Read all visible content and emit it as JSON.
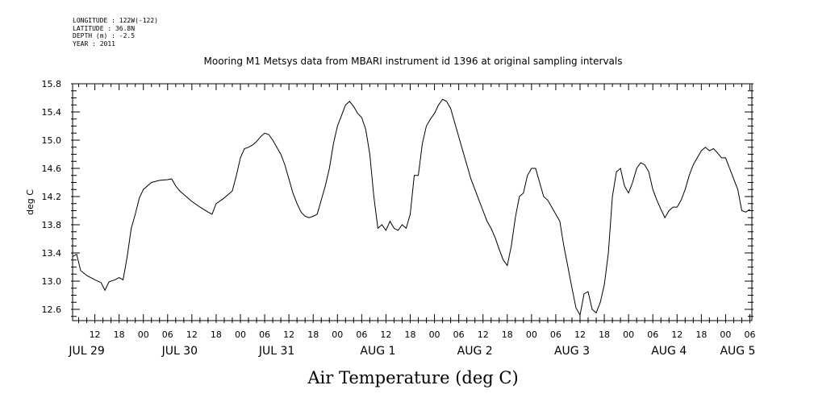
{
  "meta": {
    "longitude": "LONGITUDE : 122W(-122)",
    "latitude": "LATITUDE : 36.8N",
    "depth": "DEPTH (m) : -2.5",
    "year": "YEAR : 2011"
  },
  "chart_data": {
    "type": "line",
    "title": "Mooring M1 Metsys data from MBARI instrument id 1396 at original sampling intervals",
    "xlabel": "Air Temperature (deg C)",
    "ylabel": "deg C",
    "ylim": [
      12.44,
      15.8
    ],
    "xlim_hours": [
      6.5,
      174.5
    ],
    "y_ticks": [
      "12.6",
      "13.0",
      "13.4",
      "13.8",
      "14.2",
      "14.6",
      "15.0",
      "15.4",
      "15.8"
    ],
    "x_hour_ticks": [
      {
        "h": 12,
        "label": "12"
      },
      {
        "h": 18,
        "label": "18"
      },
      {
        "h": 24,
        "label": "00"
      },
      {
        "h": 30,
        "label": "06"
      },
      {
        "h": 36,
        "label": "12"
      },
      {
        "h": 42,
        "label": "18"
      },
      {
        "h": 48,
        "label": "00"
      },
      {
        "h": 54,
        "label": "06"
      },
      {
        "h": 60,
        "label": "12"
      },
      {
        "h": 66,
        "label": "18"
      },
      {
        "h": 72,
        "label": "00"
      },
      {
        "h": 78,
        "label": "06"
      },
      {
        "h": 84,
        "label": "12"
      },
      {
        "h": 90,
        "label": "18"
      },
      {
        "h": 96,
        "label": "00"
      },
      {
        "h": 102,
        "label": "06"
      },
      {
        "h": 108,
        "label": "12"
      },
      {
        "h": 114,
        "label": "18"
      },
      {
        "h": 120,
        "label": "00"
      },
      {
        "h": 126,
        "label": "06"
      },
      {
        "h": 132,
        "label": "12"
      },
      {
        "h": 138,
        "label": "18"
      },
      {
        "h": 144,
        "label": "00"
      },
      {
        "h": 150,
        "label": "06"
      },
      {
        "h": 156,
        "label": "12"
      },
      {
        "h": 162,
        "label": "18"
      },
      {
        "h": 168,
        "label": "00"
      },
      {
        "h": 174,
        "label": "06"
      }
    ],
    "x_date_labels": [
      {
        "h": 10,
        "label": "JUL 29"
      },
      {
        "h": 33,
        "label": "JUL 30"
      },
      {
        "h": 57,
        "label": "JUL 31"
      },
      {
        "h": 82,
        "label": "AUG  1"
      },
      {
        "h": 106,
        "label": "AUG  2"
      },
      {
        "h": 130,
        "label": "AUG  3"
      },
      {
        "h": 154,
        "label": "AUG  4"
      },
      {
        "h": 171,
        "label": "AUG  5"
      }
    ],
    "series": [
      {
        "color": "#000000",
        "points": [
          [
            6.5,
            13.35
          ],
          [
            7.5,
            13.38
          ],
          [
            8.5,
            13.15
          ],
          [
            10,
            13.08
          ],
          [
            12,
            13.02
          ],
          [
            13.5,
            12.98
          ],
          [
            14.5,
            12.87
          ],
          [
            15.5,
            12.99
          ],
          [
            17,
            13.02
          ],
          [
            18,
            13.05
          ],
          [
            19,
            13.02
          ],
          [
            20,
            13.35
          ],
          [
            21,
            13.75
          ],
          [
            22,
            13.95
          ],
          [
            23,
            14.18
          ],
          [
            24,
            14.3
          ],
          [
            26,
            14.4
          ],
          [
            28,
            14.43
          ],
          [
            30,
            14.44
          ],
          [
            31,
            14.45
          ],
          [
            32,
            14.35
          ],
          [
            33,
            14.28
          ],
          [
            34,
            14.23
          ],
          [
            36,
            14.13
          ],
          [
            38,
            14.05
          ],
          [
            40,
            13.98
          ],
          [
            41,
            13.95
          ],
          [
            42,
            14.1
          ],
          [
            44,
            14.18
          ],
          [
            46,
            14.28
          ],
          [
            47,
            14.5
          ],
          [
            48,
            14.75
          ],
          [
            49,
            14.88
          ],
          [
            50,
            14.9
          ],
          [
            51,
            14.93
          ],
          [
            52,
            14.98
          ],
          [
            53,
            15.05
          ],
          [
            54,
            15.1
          ],
          [
            55,
            15.08
          ],
          [
            56,
            15.0
          ],
          [
            57,
            14.9
          ],
          [
            58,
            14.8
          ],
          [
            59,
            14.65
          ],
          [
            60,
            14.45
          ],
          [
            61,
            14.25
          ],
          [
            62,
            14.1
          ],
          [
            63,
            13.98
          ],
          [
            64,
            13.92
          ],
          [
            65,
            13.9
          ],
          [
            66,
            13.92
          ],
          [
            67,
            13.95
          ],
          [
            68,
            14.15
          ],
          [
            69,
            14.35
          ],
          [
            70,
            14.6
          ],
          [
            71,
            14.95
          ],
          [
            72,
            15.2
          ],
          [
            73,
            15.35
          ],
          [
            74,
            15.5
          ],
          [
            75,
            15.55
          ],
          [
            76,
            15.48
          ],
          [
            77,
            15.38
          ],
          [
            78,
            15.32
          ],
          [
            79,
            15.15
          ],
          [
            80,
            14.8
          ],
          [
            81,
            14.2
          ],
          [
            82,
            13.75
          ],
          [
            83,
            13.8
          ],
          [
            84,
            13.72
          ],
          [
            85,
            13.85
          ],
          [
            86,
            13.75
          ],
          [
            87,
            13.72
          ],
          [
            88,
            13.8
          ],
          [
            89,
            13.75
          ],
          [
            90,
            13.95
          ],
          [
            91,
            14.5
          ],
          [
            92,
            14.5
          ],
          [
            93,
            14.95
          ],
          [
            94,
            15.2
          ],
          [
            95,
            15.3
          ],
          [
            96,
            15.38
          ],
          [
            97,
            15.5
          ],
          [
            98,
            15.58
          ],
          [
            99,
            15.55
          ],
          [
            100,
            15.45
          ],
          [
            101,
            15.25
          ],
          [
            102,
            15.05
          ],
          [
            103,
            14.85
          ],
          [
            104,
            14.65
          ],
          [
            105,
            14.45
          ],
          [
            106,
            14.3
          ],
          [
            107,
            14.15
          ],
          [
            108,
            14.0
          ],
          [
            109,
            13.85
          ],
          [
            110,
            13.75
          ],
          [
            111,
            13.62
          ],
          [
            112,
            13.45
          ],
          [
            113,
            13.3
          ],
          [
            114,
            13.22
          ],
          [
            115,
            13.5
          ],
          [
            116,
            13.9
          ],
          [
            117,
            14.2
          ],
          [
            118,
            14.25
          ],
          [
            119,
            14.5
          ],
          [
            120,
            14.6
          ],
          [
            121,
            14.6
          ],
          [
            122,
            14.4
          ],
          [
            123,
            14.2
          ],
          [
            124,
            14.15
          ],
          [
            125,
            14.05
          ],
          [
            126,
            13.95
          ],
          [
            127,
            13.85
          ],
          [
            128,
            13.5
          ],
          [
            129,
            13.2
          ],
          [
            130,
            12.9
          ],
          [
            131,
            12.62
          ],
          [
            132,
            12.52
          ],
          [
            133,
            12.82
          ],
          [
            134,
            12.85
          ],
          [
            135,
            12.6
          ],
          [
            136,
            12.55
          ],
          [
            137,
            12.7
          ],
          [
            138,
            12.95
          ],
          [
            139,
            13.4
          ],
          [
            140,
            14.2
          ],
          [
            141,
            14.55
          ],
          [
            142,
            14.6
          ],
          [
            143,
            14.35
          ],
          [
            144,
            14.25
          ],
          [
            145,
            14.4
          ],
          [
            146,
            14.6
          ],
          [
            147,
            14.68
          ],
          [
            148,
            14.65
          ],
          [
            149,
            14.55
          ],
          [
            150,
            14.3
          ],
          [
            151,
            14.15
          ],
          [
            152,
            14.02
          ],
          [
            153,
            13.9
          ],
          [
            154,
            14.0
          ],
          [
            155,
            14.05
          ],
          [
            156,
            14.05
          ],
          [
            157,
            14.15
          ],
          [
            158,
            14.3
          ],
          [
            159,
            14.5
          ],
          [
            160,
            14.65
          ],
          [
            161,
            14.75
          ],
          [
            162,
            14.85
          ],
          [
            163,
            14.9
          ],
          [
            164,
            14.85
          ],
          [
            165,
            14.88
          ],
          [
            166,
            14.82
          ],
          [
            167,
            14.75
          ],
          [
            168,
            14.75
          ],
          [
            169,
            14.6
          ],
          [
            170,
            14.45
          ],
          [
            171,
            14.3
          ],
          [
            172,
            14.0
          ],
          [
            173,
            13.98
          ],
          [
            174,
            14.02
          ]
        ]
      }
    ]
  }
}
